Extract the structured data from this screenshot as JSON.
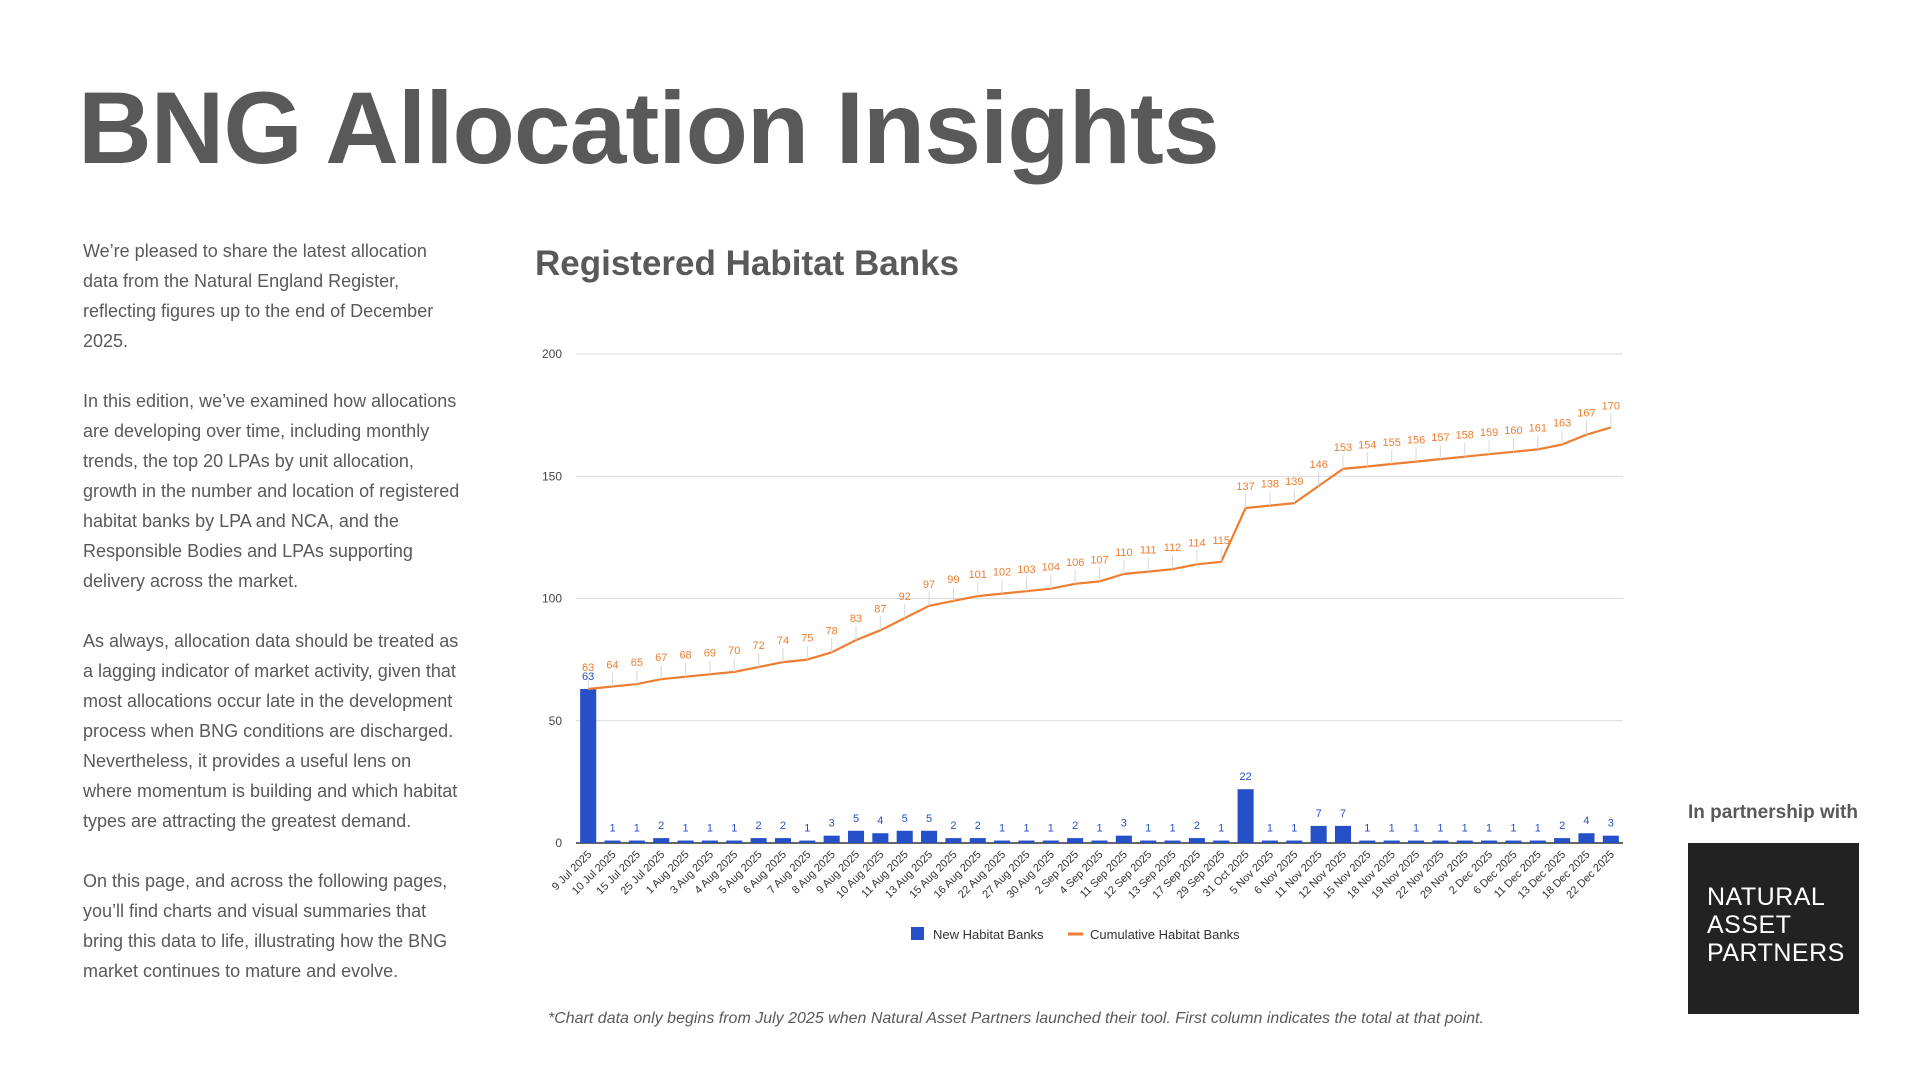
{
  "page": {
    "title": "BNG Allocation Insights",
    "intro_paragraphs": [
      "We’re pleased to share the latest allocation data from the Natural England Register, reflecting figures up to the end of December 2025.",
      "In this edition, we’ve examined how allocations are developing over time, including monthly trends, the top 20 LPAs by unit allocation, growth in the number and location of registered habitat banks by LPA and NCA, and the Responsible Bodies and LPAs supporting delivery across the market.",
      "As always, allocation data should be treated as a lagging indicator of market activity, given that most allocations occur late in the development process when BNG conditions are discharged. Nevertheless, it provides a useful lens on where momentum is building and which habitat types are attracting the greatest demand.",
      "On this page, and across the following pages, you’ll find charts and visual summaries that bring this data to life, illustrating how the BNG market continues to mature and evolve."
    ],
    "footnote": "*Chart data only begins from July 2025 when Natural Asset Partners launched their tool. First column indicates the total at that point.",
    "partner_label": "In partnership with",
    "partner_logo_lines": [
      "NATURAL",
      "ASSET",
      "PARTNERS"
    ]
  },
  "colors": {
    "bar": "#2550C8",
    "line": "#ED7D31",
    "text": "#595959",
    "grid": "#D9D9D9",
    "logo_bg": "#222222"
  },
  "chart_data": {
    "type": "bar",
    "title": "Registered Habitat Banks",
    "xlabel": "",
    "ylabel": "",
    "ylim": [
      0,
      200
    ],
    "yticks": [
      0,
      50,
      100,
      150,
      200
    ],
    "grid": true,
    "legend_position": "bottom",
    "categories": [
      "9 Jul 2025",
      "10 Jul 2025",
      "15 Jul 2025",
      "25 Jul 2025",
      "1 Aug 2025",
      "3 Aug 2025",
      "4 Aug 2025",
      "5 Aug 2025",
      "6 Aug 2025",
      "7 Aug 2025",
      "8 Aug 2025",
      "9 Aug 2025",
      "10 Aug 2025",
      "11 Aug 2025",
      "13 Aug 2025",
      "15 Aug 2025",
      "16 Aug 2025",
      "22 Aug 2025",
      "27 Aug 2025",
      "30 Aug 2025",
      "2 Sep 2025",
      "4 Sep 2025",
      "11 Sep 2025",
      "12 Sep 2025",
      "13 Sep 2025",
      "17 Sep 2025",
      "29 Sep 2025",
      "31 Oct 2025",
      "5 Nov 2025",
      "6 Nov 2025",
      "11 Nov 2025",
      "12 Nov 2025",
      "15 Nov 2025",
      "18 Nov 2025",
      "19 Nov 2025",
      "22 Nov 2025",
      "29 Nov 2025",
      "2 Dec 2025",
      "6 Dec 2025",
      "11 Dec 2025",
      "13 Dec 2025",
      "18 Dec 2025",
      "22 Dec 2025"
    ],
    "series": [
      {
        "name": "New Habitat Banks",
        "type": "bar",
        "values": [
          63,
          1,
          1,
          2,
          1,
          1,
          1,
          2,
          2,
          1,
          3,
          5,
          4,
          5,
          5,
          2,
          2,
          1,
          1,
          1,
          2,
          1,
          3,
          1,
          1,
          2,
          1,
          22,
          1,
          1,
          7,
          7,
          1,
          1,
          1,
          1,
          1,
          1,
          1,
          1,
          2,
          4,
          3
        ]
      },
      {
        "name": "Cumulative Habitat Banks",
        "type": "line",
        "values": [
          63,
          64,
          65,
          67,
          68,
          69,
          70,
          72,
          74,
          75,
          78,
          83,
          87,
          92,
          97,
          99,
          101,
          102,
          103,
          104,
          106,
          107,
          110,
          111,
          112,
          114,
          115,
          137,
          138,
          139,
          146,
          153,
          154,
          155,
          156,
          157,
          158,
          159,
          160,
          161,
          163,
          167,
          170
        ]
      }
    ]
  }
}
